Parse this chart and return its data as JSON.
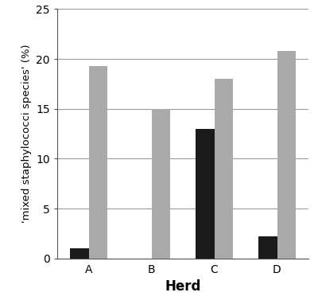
{
  "categories": [
    "A",
    "B",
    "C",
    "D"
  ],
  "black_values": [
    1.0,
    0.0,
    13.0,
    2.2
  ],
  "gray_values": [
    19.3,
    15.0,
    18.0,
    20.8
  ],
  "black_color": "#1a1a1a",
  "gray_color": "#aaaaaa",
  "ylabel": "'mixed staphylococci species' (%)",
  "xlabel": "Herd",
  "ylim": [
    0,
    25
  ],
  "yticks": [
    0,
    5,
    10,
    15,
    20,
    25
  ],
  "bar_width": 0.3,
  "background_color": "#ffffff",
  "grid_color": "#999999",
  "xlabel_fontsize": 12,
  "ylabel_fontsize": 9.5,
  "tick_fontsize": 10,
  "xlabel_fontweight": "bold"
}
